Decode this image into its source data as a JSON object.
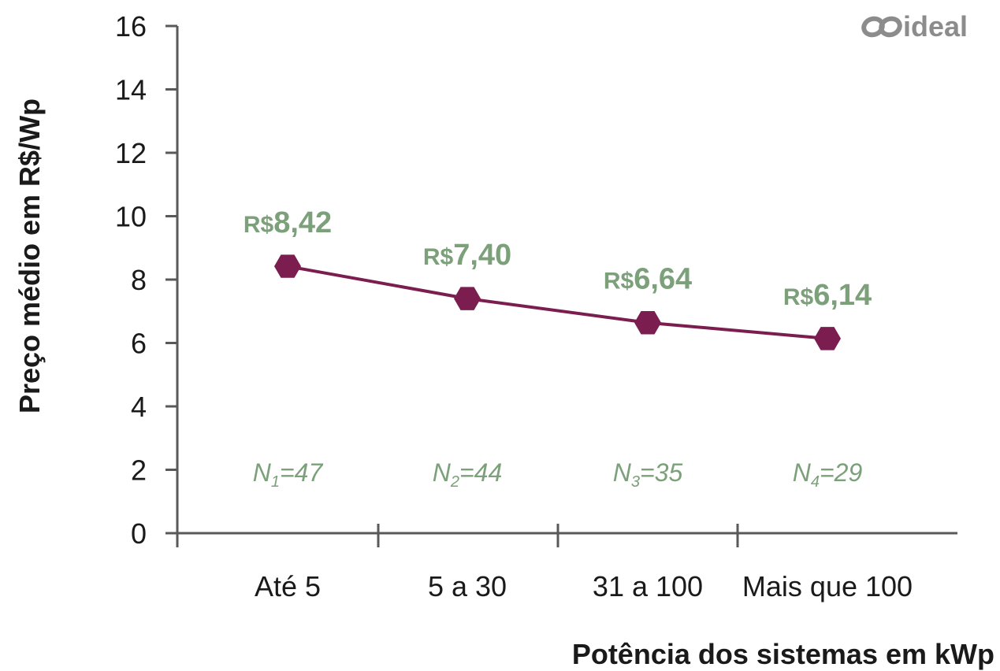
{
  "brand": {
    "logo_text": "ideal",
    "line_color": "#7b1e4f",
    "label_color": "#7ba07a",
    "axis_color": "#595959"
  },
  "chart_data": {
    "type": "line",
    "categories": [
      "Até 5",
      "5 a 30",
      "31 a 100",
      "Mais que 100"
    ],
    "values": [
      8.42,
      7.4,
      6.64,
      6.14
    ],
    "data_labels": [
      "R$8,42",
      "R$7,40",
      "R$6,64",
      "R$6,14"
    ],
    "sample_sizes": [
      {
        "base": "N",
        "sub": "1",
        "value": "=47"
      },
      {
        "base": "N",
        "sub": "2",
        "value": "=44"
      },
      {
        "base": "N",
        "sub": "3",
        "value": "=35"
      },
      {
        "base": "N",
        "sub": "4",
        "value": "=29"
      }
    ],
    "title": "",
    "xlabel": "Potência dos sistemas em kWp",
    "ylabel": "Preço médio em R$/Wp",
    "ylim": [
      0,
      16
    ],
    "yticks": [
      "0",
      "2",
      "4",
      "6",
      "8",
      "10",
      "12",
      "14",
      "16"
    ],
    "grid": false,
    "marker": "hexagon"
  }
}
